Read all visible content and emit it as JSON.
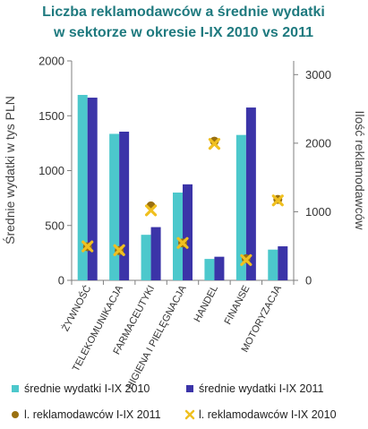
{
  "chart_data": {
    "type": "bar",
    "title_lines": [
      "Liczba reklamodawców a średnie wydatki",
      "w sektorze w okresie I-IX 2010 vs 2011"
    ],
    "categories": [
      "ŻYWNOŚĆ",
      "TELEKOMUNIKACJA",
      "FARMACEUTYKI",
      "HIGIENA I PIELĘGNACJA",
      "HANDEL",
      "FINANSE",
      "MOTORYZACJA"
    ],
    "series": [
      {
        "name": "średnie wydatki I-IX 2010",
        "kind": "bar",
        "axis": "left",
        "color": "#4cc8cc",
        "values": [
          1690,
          1335,
          415,
          800,
          195,
          1325,
          280
        ]
      },
      {
        "name": "średnie wydatki I-IX 2011",
        "kind": "bar",
        "axis": "left",
        "color": "#3b34a8",
        "values": [
          1665,
          1355,
          485,
          875,
          215,
          1575,
          310
        ]
      },
      {
        "name": "l. reklamodawców I-IX 2011",
        "kind": "marker",
        "marker": "circle",
        "axis": "right",
        "color": "#9a7010",
        "values": [
          490,
          435,
          1085,
          545,
          2030,
          315,
          1180
        ]
      },
      {
        "name": "l. reklamodawców I-IX 2010",
        "kind": "marker",
        "marker": "x",
        "axis": "right",
        "color": "#f0c020",
        "values": [
          495,
          440,
          1020,
          545,
          1990,
          295,
          1165
        ]
      }
    ],
    "ylabel": "Średnie wydatki w tys PLN",
    "ylabel_right": "Ilość reklamodawców",
    "ylim": [
      0,
      2000
    ],
    "yticks": [
      "0",
      "500",
      "1000",
      "1500",
      "2000"
    ],
    "ylim_right": [
      0,
      3200
    ],
    "yticks_right": [
      "0",
      "1000",
      "2000",
      "3000"
    ],
    "grid": false,
    "legend_position": "bottom"
  }
}
